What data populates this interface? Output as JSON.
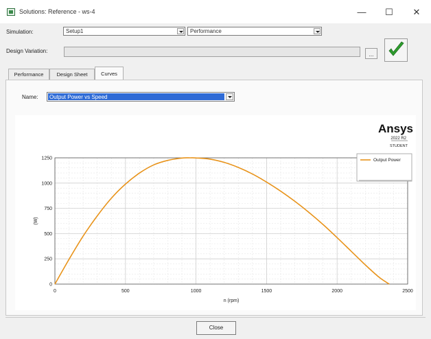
{
  "window": {
    "title": "Solutions: Reference - ws-4",
    "minimize": "—",
    "maximize": "☐",
    "close": "✕"
  },
  "simulation": {
    "label": "Simulation:",
    "setup_value": "Setup1",
    "report_value": "Performance"
  },
  "design_variation": {
    "label": "Design Variation:",
    "value": "",
    "browse_label": "..."
  },
  "tabs": [
    {
      "label": "Performance",
      "active": false
    },
    {
      "label": "Design Sheet",
      "active": false
    },
    {
      "label": "Curves",
      "active": true
    }
  ],
  "curves": {
    "name_label": "Name:",
    "selected": "Output Power vs Speed"
  },
  "branding": {
    "logo": "Ansys",
    "version": "2022 R2",
    "edition": "STUDENT"
  },
  "chart_data": {
    "type": "line",
    "xlabel": "n (rpm)",
    "ylabel": "(W)",
    "xlim": [
      0,
      2500
    ],
    "ylim": [
      0,
      1250
    ],
    "xticks": [
      0,
      500,
      1000,
      1500,
      2000,
      2500
    ],
    "yticks": [
      0,
      250,
      500,
      750,
      1000,
      1250
    ],
    "grid": true,
    "legend_position": "top-right",
    "series": [
      {
        "name": "Output Power",
        "color": "#e8931a",
        "x": [
          0,
          100,
          200,
          300,
          400,
          500,
          600,
          700,
          800,
          900,
          960,
          1000,
          1100,
          1200,
          1300,
          1400,
          1500,
          1600,
          1700,
          1800,
          1900,
          2000,
          2100,
          2200,
          2300,
          2370
        ],
        "y": [
          0,
          245,
          475,
          675,
          850,
          990,
          1100,
          1180,
          1225,
          1248,
          1250,
          1249,
          1237,
          1205,
          1155,
          1090,
          1010,
          920,
          820,
          710,
          590,
          460,
          325,
          190,
          65,
          0
        ]
      }
    ]
  },
  "footer": {
    "close_label": "Close"
  },
  "colors": {
    "accent_check": "#2e9e2e",
    "selection": "#2f6bd6",
    "curve": "#e8931a"
  }
}
